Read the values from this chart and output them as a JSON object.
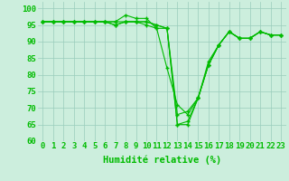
{
  "xlabel": "Humidité relative (%)",
  "background_color": "#cceedd",
  "grid_color": "#99ccbb",
  "line_color": "#00bb00",
  "marker_color": "#00bb00",
  "ylim": [
    60,
    102
  ],
  "xlim": [
    -0.5,
    23.5
  ],
  "yticks": [
    60,
    65,
    70,
    75,
    80,
    85,
    90,
    95,
    100
  ],
  "xticks": [
    0,
    1,
    2,
    3,
    4,
    5,
    6,
    7,
    8,
    9,
    10,
    11,
    12,
    13,
    14,
    15,
    16,
    17,
    18,
    19,
    20,
    21,
    22,
    23
  ],
  "series": [
    [
      96,
      96,
      96,
      96,
      96,
      96,
      96,
      96,
      98,
      97,
      97,
      94,
      82,
      71,
      68,
      73,
      84,
      89,
      93,
      91,
      91,
      93,
      92,
      92
    ],
    [
      96,
      96,
      96,
      96,
      96,
      96,
      96,
      96,
      96,
      96,
      96,
      95,
      94,
      68,
      69,
      73,
      83,
      89,
      93,
      91,
      91,
      93,
      92,
      92
    ],
    [
      96,
      96,
      96,
      96,
      96,
      96,
      96,
      95,
      96,
      96,
      96,
      95,
      94,
      65,
      66,
      73,
      83,
      89,
      93,
      91,
      91,
      93,
      92,
      92
    ],
    [
      96,
      96,
      96,
      96,
      96,
      96,
      96,
      95,
      96,
      96,
      95,
      94,
      94,
      65,
      65,
      73,
      83,
      89,
      93,
      91,
      91,
      93,
      92,
      92
    ]
  ],
  "tick_fontsize": 6.5,
  "label_fontsize": 7.5
}
